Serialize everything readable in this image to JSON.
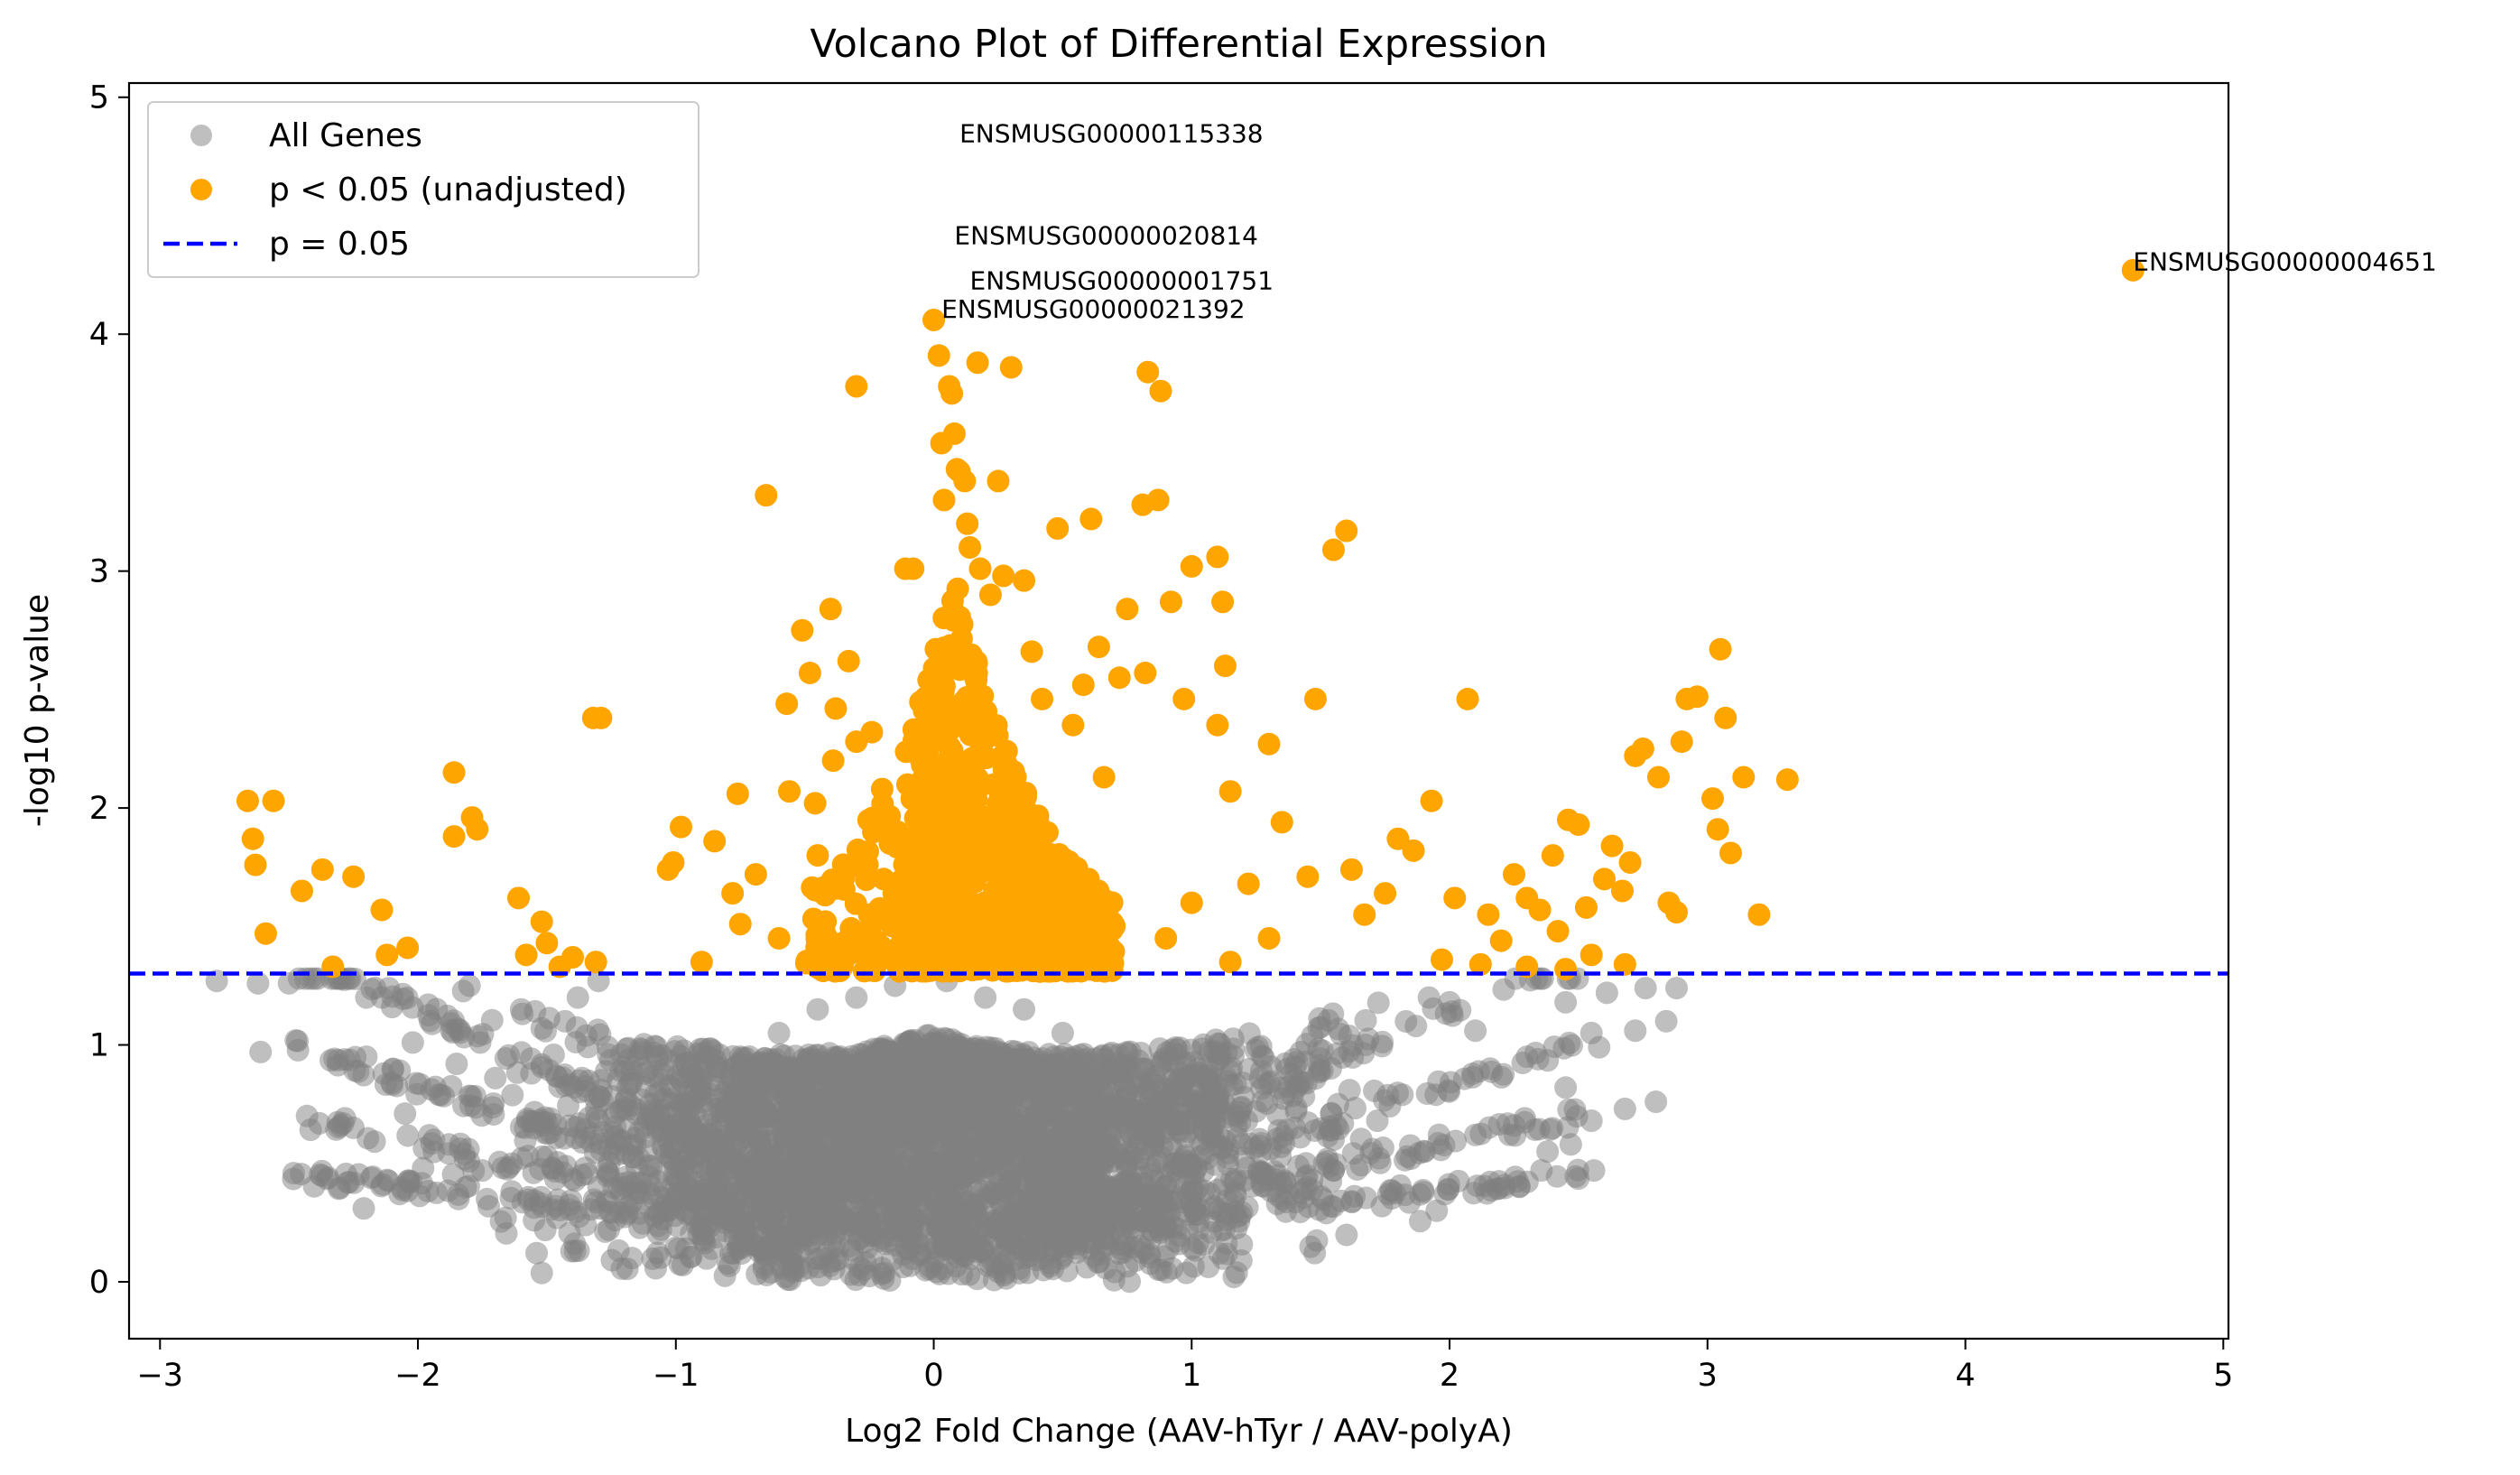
{
  "chart_data": {
    "type": "scatter",
    "title": "Volcano Plot of Differential Expression",
    "xlabel": "Log2 Fold Change (AAV-hTyr / AAV-polyA)",
    "ylabel": "-log10 p-value",
    "xlim": [
      -3.12,
      5.02
    ],
    "ylim": [
      -0.24,
      5.06
    ],
    "xticks": [
      -3,
      -2,
      -1,
      0,
      1,
      2,
      3,
      4,
      5
    ],
    "yticks": [
      0,
      1,
      2,
      3,
      4,
      5
    ],
    "xtick_labels": [
      "−3",
      "−2",
      "−1",
      "0",
      "1",
      "2",
      "3",
      "4",
      "5"
    ],
    "ytick_labels": [
      "0",
      "1",
      "2",
      "3",
      "4",
      "5"
    ],
    "grid": false,
    "legend_position": "top-left",
    "colors": {
      "all_genes": "#808080",
      "significant": "#FFA500",
      "threshold": "#0000FF"
    },
    "threshold": {
      "name": "p = 0.05",
      "y": 1.301,
      "style": "dashed"
    },
    "series": [
      {
        "name": "All Genes",
        "role": "all",
        "color": "#808080",
        "opacity": 0.5,
        "points": [
          [
            -2.78,
            1.27
          ],
          [
            -2.62,
            1.26
          ],
          [
            -2.5,
            1.26
          ],
          [
            -2.61,
            0.97
          ],
          [
            -2.43,
            0.7
          ],
          [
            -2.3,
            0.66
          ],
          [
            -2.21,
            0.31
          ],
          [
            -2.25,
            0.65
          ],
          [
            -2.12,
            0.43
          ],
          [
            -2.05,
            0.71
          ],
          [
            -2.02,
            1.01
          ],
          [
            -1.98,
            0.48
          ],
          [
            -1.88,
            0.58
          ],
          [
            -1.82,
            0.54
          ],
          [
            -1.75,
            0.47
          ],
          [
            -1.66,
            0.27
          ],
          [
            -1.55,
            0.26
          ],
          [
            -1.46,
            0.27
          ],
          [
            -1.35,
            0.24
          ],
          [
            -1.26,
            0.22
          ],
          [
            -2.2,
            1.2
          ],
          [
            -2.1,
            1.16
          ],
          [
            -2.14,
            1.2
          ],
          [
            -1.96,
            1.17
          ],
          [
            -1.8,
            1.25
          ],
          [
            -1.6,
            1.15
          ],
          [
            -1.52,
            1.07
          ],
          [
            -1.43,
            1.1
          ],
          [
            -1.38,
            1.2
          ],
          [
            -1.3,
            1.27
          ],
          [
            -2.2,
            0.95
          ],
          [
            -1.85,
            0.92
          ],
          [
            -1.7,
            0.86
          ],
          [
            -1.56,
            0.88
          ],
          [
            -1.3,
            0.68
          ],
          [
            -1.1,
            0.75
          ],
          [
            -0.9,
            0.85
          ],
          [
            -0.75,
            0.95
          ],
          [
            -0.6,
            1.05
          ],
          [
            -0.45,
            1.15
          ],
          [
            -0.3,
            1.2
          ],
          [
            -0.15,
            1.25
          ],
          [
            0.05,
            1.27
          ],
          [
            0.2,
            1.2
          ],
          [
            0.35,
            1.15
          ],
          [
            0.5,
            1.05
          ],
          [
            0.65,
            0.95
          ],
          [
            0.8,
            0.9
          ],
          [
            0.95,
            0.85
          ],
          [
            1.1,
            0.78
          ],
          [
            1.25,
            0.72
          ],
          [
            1.4,
            0.65
          ],
          [
            1.55,
            0.6
          ],
          [
            1.7,
            0.56
          ],
          [
            1.85,
            0.52
          ],
          [
            1.95,
            0.3
          ],
          [
            2.1,
            0.62
          ],
          [
            2.25,
            0.66
          ],
          [
            2.38,
            0.55
          ],
          [
            2.47,
            0.58
          ],
          [
            2.55,
            0.68
          ],
          [
            2.56,
            0.47
          ],
          [
            2.68,
            0.73
          ],
          [
            2.8,
            0.76
          ],
          [
            2.45,
            0.82
          ],
          [
            2.3,
            0.95
          ],
          [
            2.1,
            1.06
          ],
          [
            2.0,
            1.18
          ],
          [
            1.92,
            1.2
          ],
          [
            2.55,
            1.05
          ],
          [
            2.58,
            0.99
          ],
          [
            2.72,
            1.06
          ],
          [
            2.84,
            1.1
          ],
          [
            2.88,
            1.24
          ],
          [
            2.76,
            1.24
          ],
          [
            2.61,
            1.22
          ],
          [
            2.45,
            1.18
          ],
          [
            1.72,
            0.68
          ],
          [
            1.55,
            0.47
          ],
          [
            1.35,
            0.35
          ],
          [
            -0.5,
            0.85
          ],
          [
            -0.4,
            0.7
          ],
          [
            -0.2,
            0.55
          ],
          [
            0.1,
            0.6
          ],
          [
            0.3,
            0.7
          ],
          [
            0.6,
            0.75
          ],
          [
            0.4,
            0.4
          ],
          [
            -0.6,
            0.35
          ],
          [
            0.75,
            0.5
          ],
          [
            -0.8,
            0.5
          ]
        ]
      },
      {
        "name": "p < 0.05 (unadjusted)",
        "role": "significant",
        "color": "#FFA500",
        "opacity": 1,
        "points": [
          [
            -2.66,
            2.03
          ],
          [
            -2.56,
            2.03
          ],
          [
            -2.64,
            1.87
          ],
          [
            -2.63,
            1.76
          ],
          [
            -2.59,
            1.47
          ],
          [
            -2.45,
            1.65
          ],
          [
            -2.37,
            1.74
          ],
          [
            -2.33,
            1.33
          ],
          [
            -2.25,
            1.71
          ],
          [
            -2.14,
            1.57
          ],
          [
            -2.12,
            1.38
          ],
          [
            -2.04,
            1.41
          ],
          [
            -1.86,
            2.15
          ],
          [
            -1.86,
            1.88
          ],
          [
            -1.79,
            1.96
          ],
          [
            -1.77,
            1.91
          ],
          [
            -1.61,
            1.62
          ],
          [
            -1.58,
            1.38
          ],
          [
            -1.52,
            1.52
          ],
          [
            -1.5,
            1.43
          ],
          [
            -1.45,
            1.33
          ],
          [
            -1.4,
            1.37
          ],
          [
            -1.32,
            2.38
          ],
          [
            -1.29,
            2.38
          ],
          [
            -1.31,
            1.35
          ],
          [
            -1.03,
            1.74
          ],
          [
            -1.01,
            1.77
          ],
          [
            -0.98,
            1.92
          ],
          [
            -0.85,
            1.86
          ],
          [
            -0.76,
            2.06
          ],
          [
            -0.78,
            1.64
          ],
          [
            -0.75,
            1.51
          ],
          [
            -0.69,
            1.72
          ],
          [
            -0.65,
            3.32
          ],
          [
            -0.57,
            2.44
          ],
          [
            -0.56,
            2.07
          ],
          [
            -0.51,
            2.75
          ],
          [
            -0.48,
            2.57
          ],
          [
            -0.46,
            2.02
          ],
          [
            -0.45,
            1.8
          ],
          [
            -0.4,
            2.84
          ],
          [
            -0.39,
            2.2
          ],
          [
            -0.38,
            2.42
          ],
          [
            -0.33,
            2.62
          ],
          [
            -0.3,
            2.28
          ],
          [
            -0.3,
            3.78
          ],
          [
            -0.24,
            2.32
          ],
          [
            -0.2,
            2.08
          ],
          [
            -0.17,
            1.85
          ],
          [
            -0.14,
            1.9
          ],
          [
            -0.11,
            3.01
          ],
          [
            -0.08,
            3.01
          ],
          [
            -0.02,
            2.54
          ],
          [
            0.0,
            4.06
          ],
          [
            0.02,
            3.91
          ],
          [
            0.03,
            3.54
          ],
          [
            0.04,
            3.3
          ],
          [
            0.06,
            3.78
          ],
          [
            0.07,
            3.75
          ],
          [
            0.08,
            3.58
          ],
          [
            0.09,
            3.43
          ],
          [
            0.1,
            3.42
          ],
          [
            0.12,
            3.38
          ],
          [
            0.13,
            3.2
          ],
          [
            0.14,
            3.1
          ],
          [
            0.17,
            3.88
          ],
          [
            0.18,
            3.01
          ],
          [
            0.22,
            2.9
          ],
          [
            0.25,
            3.38
          ],
          [
            0.27,
            2.98
          ],
          [
            0.3,
            3.86
          ],
          [
            0.35,
            2.96
          ],
          [
            0.38,
            2.66
          ],
          [
            0.42,
            2.46
          ],
          [
            0.48,
            3.18
          ],
          [
            0.54,
            2.35
          ],
          [
            0.58,
            2.52
          ],
          [
            0.61,
            3.22
          ],
          [
            0.64,
            2.68
          ],
          [
            0.66,
            2.13
          ],
          [
            0.72,
            2.55
          ],
          [
            0.75,
            2.84
          ],
          [
            0.81,
            3.28
          ],
          [
            0.82,
            2.57
          ],
          [
            0.87,
            3.3
          ],
          [
            0.83,
            3.84
          ],
          [
            0.88,
            3.76
          ],
          [
            0.92,
            2.87
          ],
          [
            0.97,
            2.46
          ],
          [
            1.0,
            3.02
          ],
          [
            1.1,
            3.06
          ],
          [
            1.12,
            2.87
          ],
          [
            1.13,
            2.6
          ],
          [
            1.1,
            2.35
          ],
          [
            1.15,
            2.07
          ],
          [
            1.22,
            1.68
          ],
          [
            1.3,
            2.27
          ],
          [
            1.35,
            1.94
          ],
          [
            1.45,
            1.71
          ],
          [
            1.48,
            2.46
          ],
          [
            1.55,
            3.09
          ],
          [
            1.6,
            3.17
          ],
          [
            1.62,
            1.74
          ],
          [
            1.67,
            1.55
          ],
          [
            1.75,
            1.64
          ],
          [
            1.8,
            1.87
          ],
          [
            1.86,
            1.82
          ],
          [
            1.93,
            2.03
          ],
          [
            1.97,
            1.36
          ],
          [
            2.02,
            1.62
          ],
          [
            2.07,
            2.46
          ],
          [
            2.12,
            1.34
          ],
          [
            2.15,
            1.55
          ],
          [
            2.2,
            1.44
          ],
          [
            2.25,
            1.72
          ],
          [
            2.3,
            1.62
          ],
          [
            2.35,
            1.57
          ],
          [
            2.4,
            1.8
          ],
          [
            2.42,
            1.48
          ],
          [
            2.46,
            1.95
          ],
          [
            2.5,
            1.93
          ],
          [
            2.53,
            1.58
          ],
          [
            2.55,
            1.38
          ],
          [
            2.6,
            1.7
          ],
          [
            2.63,
            1.84
          ],
          [
            2.67,
            1.65
          ],
          [
            2.7,
            1.77
          ],
          [
            2.72,
            2.22
          ],
          [
            2.75,
            2.25
          ],
          [
            2.81,
            2.13
          ],
          [
            2.85,
            1.6
          ],
          [
            2.88,
            1.56
          ],
          [
            2.9,
            2.28
          ],
          [
            2.92,
            2.46
          ],
          [
            2.96,
            2.47
          ],
          [
            3.02,
            2.04
          ],
          [
            3.04,
            1.91
          ],
          [
            3.05,
            2.67
          ],
          [
            3.07,
            2.38
          ],
          [
            3.09,
            1.81
          ],
          [
            3.14,
            2.13
          ],
          [
            3.2,
            1.55
          ],
          [
            3.31,
            2.12
          ],
          [
            4.65,
            4.27
          ],
          [
            2.68,
            1.34
          ],
          [
            2.45,
            1.32
          ],
          [
            2.3,
            1.33
          ],
          [
            0.45,
            1.8
          ],
          [
            0.5,
            1.55
          ],
          [
            0.35,
            1.45
          ],
          [
            0.25,
            1.6
          ],
          [
            0.15,
            1.75
          ],
          [
            0.05,
            1.5
          ],
          [
            -0.05,
            1.65
          ],
          [
            -0.15,
            1.4
          ],
          [
            0.6,
            1.7
          ],
          [
            0.7,
            1.5
          ],
          [
            0.9,
            1.45
          ],
          [
            1.0,
            1.6
          ],
          [
            -0.25,
            1.55
          ],
          [
            -0.35,
            1.7
          ],
          [
            -0.6,
            1.45
          ],
          [
            -0.9,
            1.35
          ],
          [
            1.15,
            1.35
          ],
          [
            1.3,
            1.45
          ]
        ]
      }
    ],
    "annotations": [
      {
        "text": "ENSMUSG00000115338",
        "x": 0.1,
        "y": 4.81
      },
      {
        "text": "ENSMUSG00000020814",
        "x": 0.08,
        "y": 4.38
      },
      {
        "text": "ENSMUSG00000001751",
        "x": 0.14,
        "y": 4.19
      },
      {
        "text": "ENSMUSG00000021392",
        "x": 0.03,
        "y": 4.07
      },
      {
        "text": "ENSMUSG00000004651",
        "x": 4.65,
        "y": 4.27
      }
    ],
    "legend": [
      {
        "label": "All Genes",
        "kind": "marker",
        "color": "#808080",
        "opacity": 0.5
      },
      {
        "label": "p < 0.05 (unadjusted)",
        "kind": "marker",
        "color": "#FFA500",
        "opacity": 1
      },
      {
        "label": "p = 0.05",
        "kind": "line",
        "color": "#0000FF",
        "opacity": 1
      }
    ]
  }
}
